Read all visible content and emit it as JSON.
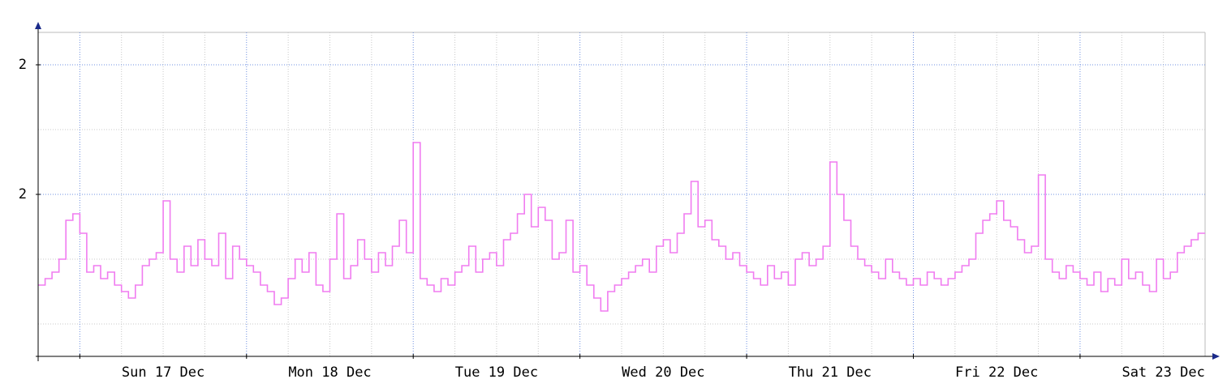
{
  "chart_data": {
    "type": "step",
    "xlim": [
      -6,
      162
    ],
    "ylim": [
      0.25,
      2.75
    ],
    "xticks": [
      {
        "value": 12,
        "label": "Sun 17 Dec"
      },
      {
        "value": 36,
        "label": "Mon 18 Dec"
      },
      {
        "value": 60,
        "label": "Tue 19 Dec"
      },
      {
        "value": 84,
        "label": "Wed 20 Dec"
      },
      {
        "value": 108,
        "label": "Thu 21 Dec"
      },
      {
        "value": 132,
        "label": "Fri 22 Dec"
      },
      {
        "value": 156,
        "label": "Sat 23 Dec"
      }
    ],
    "x_major_grid": [
      0,
      24,
      48,
      72,
      96,
      120,
      144
    ],
    "x_minor_grid": [
      6,
      12,
      18,
      30,
      36,
      42,
      54,
      60,
      66,
      78,
      84,
      90,
      102,
      108,
      114,
      126,
      132,
      138,
      150,
      156
    ],
    "yticks": [
      {
        "value": 1.5,
        "label": "2"
      },
      {
        "value": 2.5,
        "label": "2"
      }
    ],
    "y_minor_grid": [
      0.5,
      1.0,
      2.0
    ],
    "grid": true,
    "series": [
      {
        "color": "#f07cf0",
        "x": [
          -6,
          -5,
          -4,
          -3,
          -2,
          -1,
          0,
          1,
          2,
          3,
          4,
          5,
          6,
          7,
          8,
          9,
          10,
          11,
          12,
          13,
          14,
          15,
          16,
          17,
          18,
          19,
          20,
          21,
          22,
          23,
          24,
          25,
          26,
          27,
          28,
          29,
          30,
          31,
          32,
          33,
          34,
          35,
          36,
          37,
          38,
          39,
          40,
          41,
          42,
          43,
          44,
          45,
          46,
          47,
          48,
          49,
          50,
          51,
          52,
          53,
          54,
          55,
          56,
          57,
          58,
          59,
          60,
          61,
          62,
          63,
          64,
          65,
          66,
          67,
          68,
          69,
          70,
          71,
          72,
          73,
          74,
          75,
          76,
          77,
          78,
          79,
          80,
          81,
          82,
          83,
          84,
          85,
          86,
          87,
          88,
          89,
          90,
          91,
          92,
          93,
          94,
          95,
          96,
          97,
          98,
          99,
          100,
          101,
          102,
          103,
          104,
          105,
          106,
          107,
          108,
          109,
          110,
          111,
          112,
          113,
          114,
          115,
          116,
          117,
          118,
          119,
          120,
          121,
          122,
          123,
          124,
          125,
          126,
          127,
          128,
          129,
          130,
          131,
          132,
          133,
          134,
          135,
          136,
          137,
          138,
          139,
          140,
          141,
          142,
          143,
          144,
          145,
          146,
          147,
          148,
          149,
          150,
          151,
          152,
          153,
          154,
          155,
          156,
          157,
          158,
          159,
          160,
          161
        ],
        "values": [
          0.8,
          0.85,
          0.9,
          1.0,
          1.3,
          1.35,
          1.2,
          0.9,
          0.95,
          0.85,
          0.9,
          0.8,
          0.75,
          0.7,
          0.8,
          0.95,
          1.0,
          1.05,
          1.45,
          1.0,
          0.9,
          1.1,
          0.95,
          1.15,
          1.0,
          0.95,
          1.2,
          0.85,
          1.1,
          1.0,
          0.95,
          0.9,
          0.8,
          0.75,
          0.65,
          0.7,
          0.85,
          1.0,
          0.9,
          1.05,
          0.8,
          0.75,
          1.0,
          1.35,
          0.85,
          0.95,
          1.15,
          1.0,
          0.9,
          1.05,
          0.95,
          1.1,
          1.3,
          1.05,
          1.9,
          0.85,
          0.8,
          0.75,
          0.85,
          0.8,
          0.9,
          0.95,
          1.1,
          0.9,
          1.0,
          1.05,
          0.95,
          1.15,
          1.2,
          1.35,
          1.5,
          1.25,
          1.4,
          1.3,
          1.0,
          1.05,
          1.3,
          0.9,
          0.95,
          0.8,
          0.7,
          0.6,
          0.75,
          0.8,
          0.85,
          0.9,
          0.95,
          1.0,
          0.9,
          1.1,
          1.15,
          1.05,
          1.2,
          1.35,
          1.6,
          1.25,
          1.3,
          1.15,
          1.1,
          1.0,
          1.05,
          0.95,
          0.9,
          0.85,
          0.8,
          0.95,
          0.85,
          0.9,
          0.8,
          1.0,
          1.05,
          0.95,
          1.0,
          1.1,
          1.75,
          1.5,
          1.3,
          1.1,
          1.0,
          0.95,
          0.9,
          0.85,
          1.0,
          0.9,
          0.85,
          0.8,
          0.85,
          0.8,
          0.9,
          0.85,
          0.8,
          0.85,
          0.9,
          0.95,
          1.0,
          1.2,
          1.3,
          1.35,
          1.45,
          1.3,
          1.25,
          1.15,
          1.05,
          1.1,
          1.65,
          1.0,
          0.9,
          0.85,
          0.95,
          0.9,
          0.85,
          0.8,
          0.9,
          0.75,
          0.85,
          0.8,
          1.0,
          0.85,
          0.9,
          0.8,
          0.75,
          1.0,
          0.85,
          0.9,
          1.05,
          1.1,
          1.15,
          1.2
        ]
      }
    ]
  }
}
